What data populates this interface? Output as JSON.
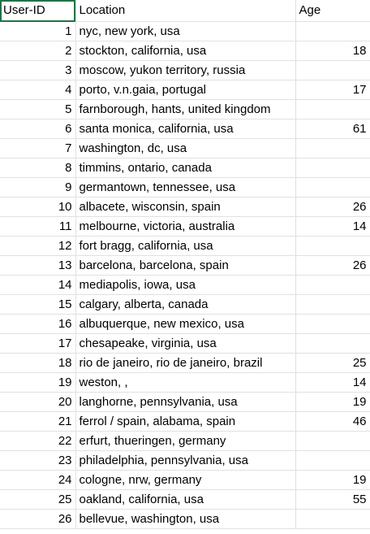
{
  "sheet": {
    "selected_cell": "A1",
    "accent_color": "#217346",
    "gridline_color": "#e1e1e1"
  },
  "headers": {
    "col_a": "User-ID",
    "col_b": "Location",
    "col_c": "Age"
  },
  "rows": [
    {
      "id": "1",
      "location": "nyc, new york, usa",
      "age": ""
    },
    {
      "id": "2",
      "location": "stockton, california, usa",
      "age": "18"
    },
    {
      "id": "3",
      "location": "moscow, yukon territory, russia",
      "age": ""
    },
    {
      "id": "4",
      "location": "porto, v.n.gaia, portugal",
      "age": "17"
    },
    {
      "id": "5",
      "location": "farnborough, hants, united kingdom",
      "age": ""
    },
    {
      "id": "6",
      "location": "santa monica, california, usa",
      "age": "61"
    },
    {
      "id": "7",
      "location": "washington, dc, usa",
      "age": ""
    },
    {
      "id": "8",
      "location": "timmins, ontario, canada",
      "age": ""
    },
    {
      "id": "9",
      "location": "germantown, tennessee, usa",
      "age": ""
    },
    {
      "id": "10",
      "location": "albacete, wisconsin, spain",
      "age": "26"
    },
    {
      "id": "11",
      "location": "melbourne, victoria, australia",
      "age": "14"
    },
    {
      "id": "12",
      "location": "fort bragg, california, usa",
      "age": ""
    },
    {
      "id": "13",
      "location": "barcelona, barcelona, spain",
      "age": "26"
    },
    {
      "id": "14",
      "location": "mediapolis, iowa, usa",
      "age": ""
    },
    {
      "id": "15",
      "location": "calgary, alberta, canada",
      "age": ""
    },
    {
      "id": "16",
      "location": "albuquerque, new mexico, usa",
      "age": ""
    },
    {
      "id": "17",
      "location": "chesapeake, virginia, usa",
      "age": ""
    },
    {
      "id": "18",
      "location": "rio de janeiro, rio de janeiro, brazil",
      "age": "25"
    },
    {
      "id": "19",
      "location": "weston, ,",
      "age": "14"
    },
    {
      "id": "20",
      "location": "langhorne, pennsylvania, usa",
      "age": "19"
    },
    {
      "id": "21",
      "location": "ferrol / spain, alabama, spain",
      "age": "46"
    },
    {
      "id": "22",
      "location": "erfurt, thueringen, germany",
      "age": ""
    },
    {
      "id": "23",
      "location": "philadelphia, pennsylvania, usa",
      "age": ""
    },
    {
      "id": "24",
      "location": "cologne, nrw, germany",
      "age": "19"
    },
    {
      "id": "25",
      "location": "oakland, california, usa",
      "age": "55"
    },
    {
      "id": "26",
      "location": "bellevue, washington, usa",
      "age": ""
    }
  ]
}
